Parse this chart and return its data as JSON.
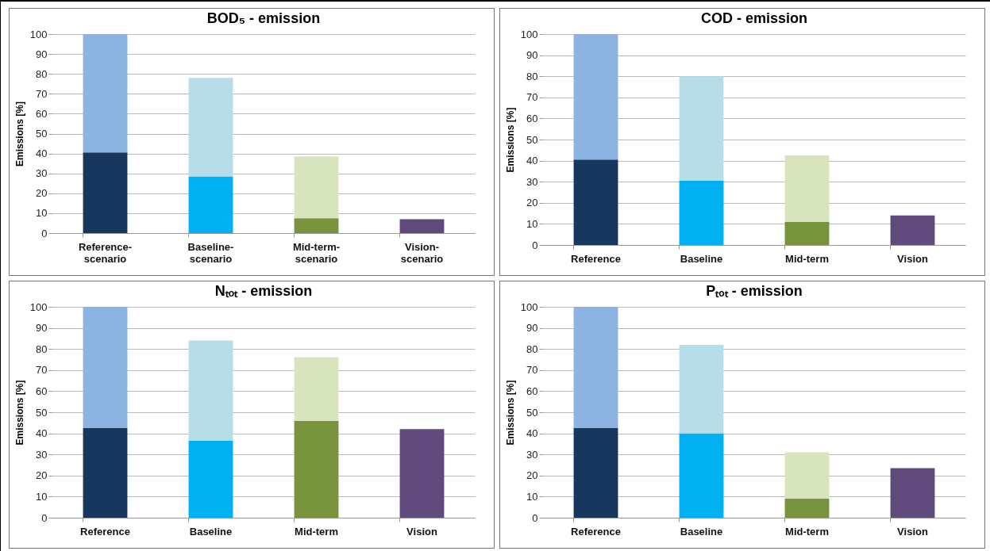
{
  "chart_data": [
    {
      "type": "bar",
      "title": "BOD₅ - emission",
      "ylabel": "Emissions [%]",
      "categories": [
        "Reference-scenario",
        "Baseline-scenario",
        "Mid-term-scenario",
        "Vision-scenario"
      ],
      "stacked": true,
      "ylim": [
        0,
        100
      ],
      "yticks": [
        0,
        10,
        20,
        30,
        40,
        50,
        60,
        70,
        80,
        90,
        100
      ],
      "grid": "y",
      "series": [
        {
          "colors": [
            "#17375e",
            "#00b0f0",
            "#77933c",
            "#604a7b"
          ],
          "values": [
            40.5,
            28.5,
            7.5,
            7
          ]
        },
        {
          "colors": [
            "#8db3e2",
            "#b7dde8",
            "#d7e4bd",
            null
          ],
          "values": [
            59.5,
            49.5,
            31,
            null
          ]
        }
      ]
    },
    {
      "type": "bar",
      "title": "COD - emission",
      "ylabel": "Emissions [%]",
      "categories": [
        "Reference",
        "Baseline",
        "Mid-term",
        "Vision"
      ],
      "stacked": true,
      "ylim": [
        0,
        100
      ],
      "yticks": [
        0,
        10,
        20,
        30,
        40,
        50,
        60,
        70,
        80,
        90,
        100
      ],
      "grid": "y",
      "series": [
        {
          "colors": [
            "#17375e",
            "#00b0f0",
            "#77933c",
            "#604a7b"
          ],
          "values": [
            40.5,
            30.5,
            11,
            14
          ]
        },
        {
          "colors": [
            "#8db3e2",
            "#b7dde8",
            "#d7e4bd",
            null
          ],
          "values": [
            59.5,
            49.5,
            31.5,
            null
          ]
        }
      ]
    },
    {
      "type": "bar",
      "title": "Nₜₒₜ - emission",
      "ylabel": "Emissions [%]",
      "categories": [
        "Reference",
        "Baseline",
        "Mid-term",
        "Vision"
      ],
      "stacked": true,
      "ylim": [
        0,
        100
      ],
      "yticks": [
        0,
        10,
        20,
        30,
        40,
        50,
        60,
        70,
        80,
        90,
        100
      ],
      "grid": "y",
      "series": [
        {
          "colors": [
            "#17375e",
            "#00b0f0",
            "#77933c",
            "#604a7b"
          ],
          "values": [
            42.5,
            36.5,
            46,
            42
          ]
        },
        {
          "colors": [
            "#8db3e2",
            "#b7dde8",
            "#d7e4bd",
            null
          ],
          "values": [
            57.5,
            47.5,
            30,
            null
          ]
        }
      ]
    },
    {
      "type": "bar",
      "title": "Pₜₒₜ - emission",
      "ylabel": "Emissions [%]",
      "categories": [
        "Reference",
        "Baseline",
        "Mid-term",
        "Vision"
      ],
      "stacked": true,
      "ylim": [
        0,
        100
      ],
      "yticks": [
        0,
        10,
        20,
        30,
        40,
        50,
        60,
        70,
        80,
        90,
        100
      ],
      "grid": "y",
      "series": [
        {
          "colors": [
            "#17375e",
            "#00b0f0",
            "#77933c",
            "#604a7b"
          ],
          "values": [
            42.5,
            40,
            9,
            23.5
          ]
        },
        {
          "colors": [
            "#8db3e2",
            "#b7dde8",
            "#d7e4bd",
            null
          ],
          "values": [
            57.5,
            42,
            22,
            null
          ]
        }
      ]
    }
  ]
}
